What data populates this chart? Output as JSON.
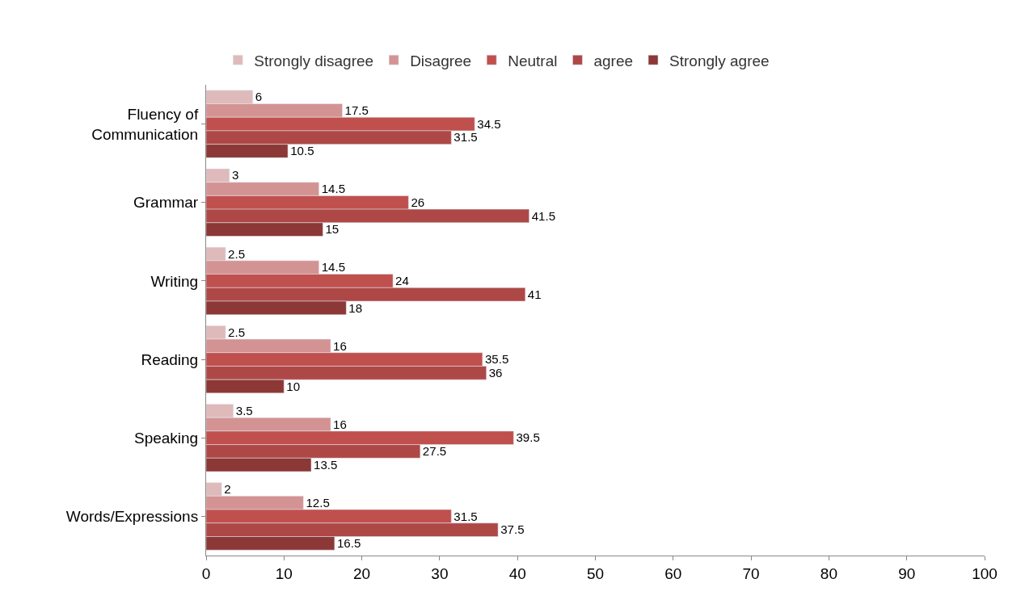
{
  "chart_data": {
    "type": "bar",
    "orientation": "horizontal",
    "categories": [
      "Fluency of\nCommunication",
      "Grammar",
      "Writing",
      "Reading",
      "Speaking",
      "Words/Expressions"
    ],
    "series": [
      {
        "name": "Strongly disagree",
        "color": "#dfbaba",
        "values": [
          6,
          3,
          2.5,
          2.5,
          3.5,
          2
        ]
      },
      {
        "name": "Disagree",
        "color": "#d49393",
        "values": [
          17.5,
          14.5,
          14.5,
          16,
          16,
          12.5
        ]
      },
      {
        "name": "Neutral",
        "color": "#c0504d",
        "values": [
          34.5,
          26,
          24,
          35.5,
          39.5,
          31.5
        ]
      },
      {
        "name": "agree",
        "color": "#ae4846",
        "values": [
          31.5,
          41.5,
          41,
          36,
          27.5,
          37.5
        ]
      },
      {
        "name": "Strongly agree",
        "color": "#8c3836",
        "values": [
          10.5,
          15,
          18,
          10,
          13.5,
          16.5
        ]
      }
    ],
    "xlim": [
      0,
      100
    ],
    "xticks": [
      0,
      10,
      20,
      30,
      40,
      50,
      60,
      70,
      80,
      90,
      100
    ],
    "data_labels": true,
    "legend": "top"
  }
}
